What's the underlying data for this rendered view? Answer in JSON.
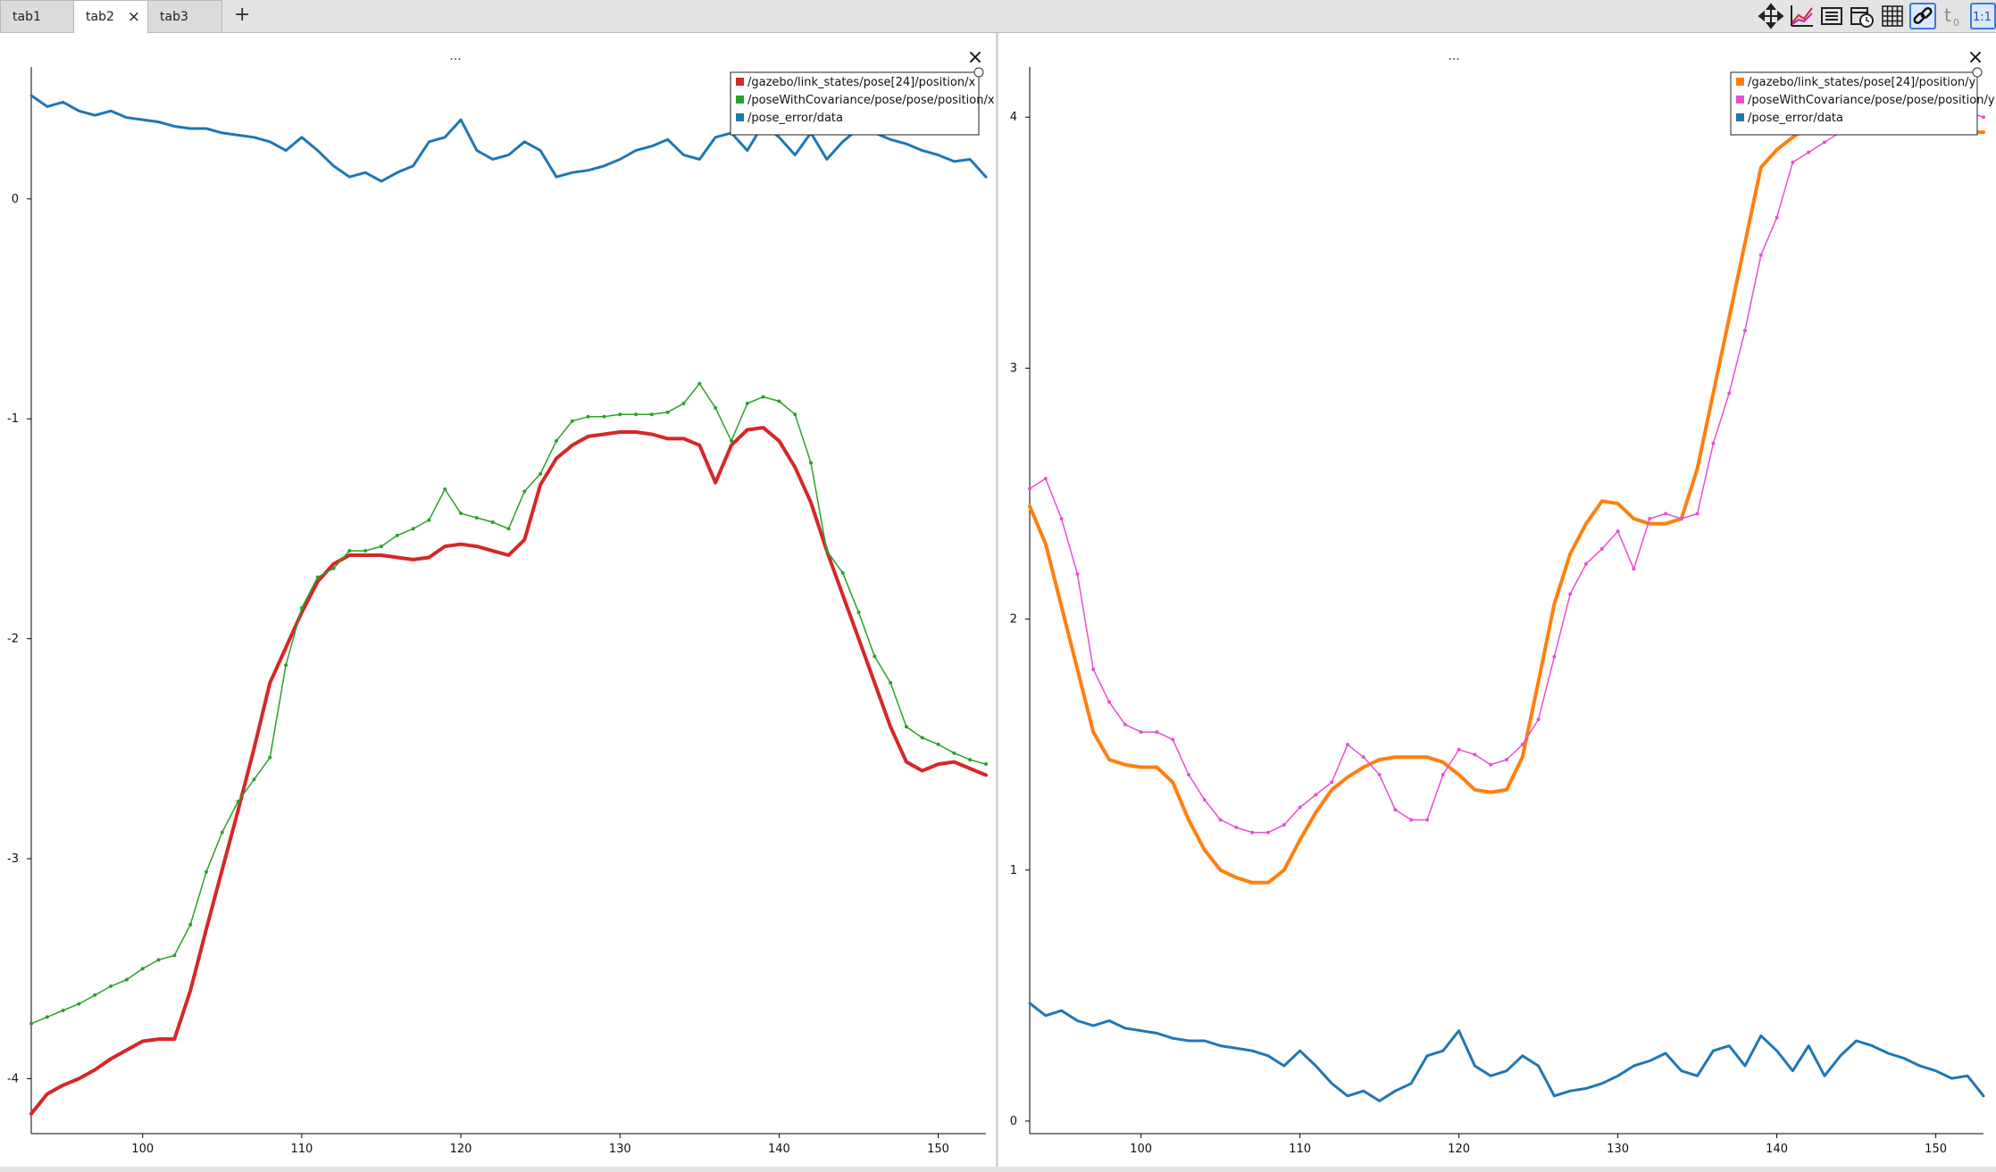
{
  "tabs": [
    {
      "label": "tab1"
    },
    {
      "label": "tab2",
      "close": "×"
    },
    {
      "label": "tab3"
    }
  ],
  "add_tab": "+",
  "toolbar": {
    "icons": [
      "move-icon",
      "plot-settings-icon",
      "legend-icon",
      "time-icon",
      "grid-icon",
      "link-icon",
      "t0-icon",
      "ratio-icon"
    ],
    "t0_label": "t",
    "t0_sub": "0",
    "ratio_label": "1:1"
  },
  "accent": "#3c7bd6",
  "chart_data": [
    {
      "type": "line",
      "title": "...",
      "close": "×",
      "xlim": [
        93,
        153
      ],
      "ylim": [
        -4.25,
        0.6
      ],
      "xticks": [
        100,
        110,
        120,
        130,
        140,
        150
      ],
      "yticks": [
        0,
        -1,
        -2,
        -3,
        -4
      ],
      "legend_position": "top-right",
      "grid": false,
      "series": [
        {
          "name": "/gazebo/link_states/pose[24]/position/x",
          "color": "#d62728",
          "width": 4,
          "markers": false,
          "x": [
            93,
            94,
            95,
            96,
            97,
            98,
            99,
            100,
            101,
            102,
            103,
            104,
            105,
            106,
            107,
            108,
            109,
            110,
            111,
            112,
            113,
            114,
            115,
            116,
            117,
            118,
            119,
            120,
            121,
            122,
            123,
            124,
            125,
            126,
            127,
            128,
            129,
            130,
            131,
            132,
            133,
            134,
            135,
            136,
            137,
            138,
            139,
            140,
            141,
            142,
            143,
            144,
            145,
            146,
            147,
            148,
            149,
            150,
            151,
            152,
            153
          ],
          "y": [
            -4.16,
            -4.07,
            -4.03,
            -4.0,
            -3.96,
            -3.91,
            -3.87,
            -3.83,
            -3.82,
            -3.82,
            -3.6,
            -3.32,
            -3.05,
            -2.78,
            -2.5,
            -2.2,
            -2.04,
            -1.88,
            -1.74,
            -1.66,
            -1.62,
            -1.62,
            -1.62,
            -1.63,
            -1.64,
            -1.63,
            -1.58,
            -1.57,
            -1.58,
            -1.6,
            -1.62,
            -1.55,
            -1.3,
            -1.18,
            -1.12,
            -1.08,
            -1.07,
            -1.06,
            -1.06,
            -1.07,
            -1.09,
            -1.09,
            -1.12,
            -1.29,
            -1.12,
            -1.05,
            -1.04,
            -1.1,
            -1.22,
            -1.38,
            -1.6,
            -1.8,
            -2.0,
            -2.2,
            -2.4,
            -2.56,
            -2.6,
            -2.57,
            -2.56,
            -2.59,
            -2.62
          ]
        },
        {
          "name": "/poseWithCovariance/pose/pose/position/x",
          "color": "#2ca02c",
          "width": 1.5,
          "markers": true,
          "x": [
            93,
            94,
            95,
            96,
            97,
            98,
            99,
            100,
            101,
            102,
            103,
            104,
            105,
            106,
            107,
            108,
            109,
            110,
            111,
            112,
            113,
            114,
            115,
            116,
            117,
            118,
            119,
            120,
            121,
            122,
            123,
            124,
            125,
            126,
            127,
            128,
            129,
            130,
            131,
            132,
            133,
            134,
            135,
            136,
            137,
            138,
            139,
            140,
            141,
            142,
            143,
            144,
            145,
            146,
            147,
            148,
            149,
            150,
            151,
            152,
            153
          ],
          "y": [
            -3.75,
            -3.72,
            -3.69,
            -3.66,
            -3.62,
            -3.58,
            -3.55,
            -3.5,
            -3.46,
            -3.44,
            -3.3,
            -3.06,
            -2.88,
            -2.74,
            -2.64,
            -2.54,
            -2.12,
            -1.86,
            -1.72,
            -1.68,
            -1.6,
            -1.6,
            -1.58,
            -1.53,
            -1.5,
            -1.46,
            -1.32,
            -1.43,
            -1.45,
            -1.47,
            -1.5,
            -1.33,
            -1.25,
            -1.1,
            -1.01,
            -0.99,
            -0.99,
            -0.98,
            -0.98,
            -0.98,
            -0.97,
            -0.93,
            -0.84,
            -0.95,
            -1.1,
            -0.93,
            -0.9,
            -0.92,
            -0.98,
            -1.2,
            -1.6,
            -1.7,
            -1.88,
            -2.08,
            -2.2,
            -2.4,
            -2.45,
            -2.48,
            -2.52,
            -2.55,
            -2.57
          ]
        },
        {
          "name": "/pose_error/data",
          "color": "#1f77b4",
          "width": 3,
          "markers": false,
          "x": [
            93,
            94,
            95,
            96,
            97,
            98,
            99,
            100,
            101,
            102,
            103,
            104,
            105,
            106,
            107,
            108,
            109,
            110,
            111,
            112,
            113,
            114,
            115,
            116,
            117,
            118,
            119,
            120,
            121,
            122,
            123,
            124,
            125,
            126,
            127,
            128,
            129,
            130,
            131,
            132,
            133,
            134,
            135,
            136,
            137,
            138,
            139,
            140,
            141,
            142,
            143,
            144,
            145,
            146,
            147,
            148,
            149,
            150,
            151,
            152,
            153
          ],
          "y": [
            0.47,
            0.42,
            0.44,
            0.4,
            0.38,
            0.4,
            0.37,
            0.36,
            0.35,
            0.33,
            0.32,
            0.32,
            0.3,
            0.29,
            0.28,
            0.26,
            0.22,
            0.28,
            0.22,
            0.15,
            0.1,
            0.12,
            0.08,
            0.12,
            0.15,
            0.26,
            0.28,
            0.36,
            0.22,
            0.18,
            0.2,
            0.26,
            0.22,
            0.1,
            0.12,
            0.13,
            0.15,
            0.18,
            0.22,
            0.24,
            0.27,
            0.2,
            0.18,
            0.28,
            0.3,
            0.22,
            0.34,
            0.28,
            0.2,
            0.3,
            0.18,
            0.26,
            0.32,
            0.3,
            0.27,
            0.25,
            0.22,
            0.2,
            0.17,
            0.18,
            0.1
          ]
        }
      ]
    },
    {
      "type": "line",
      "title": "...",
      "close": "×",
      "xlim": [
        93,
        153
      ],
      "ylim": [
        -0.05,
        4.2
      ],
      "xticks": [
        100,
        110,
        120,
        130,
        140,
        150
      ],
      "yticks": [
        0,
        1,
        2,
        3,
        4
      ],
      "legend_position": "top-right",
      "grid": false,
      "series": [
        {
          "name": "/gazebo/link_states/pose[24]/position/y",
          "color": "#ff7f0e",
          "width": 4,
          "markers": false,
          "x": [
            93,
            94,
            95,
            96,
            97,
            98,
            99,
            100,
            101,
            102,
            103,
            104,
            105,
            106,
            107,
            108,
            109,
            110,
            111,
            112,
            113,
            114,
            115,
            116,
            117,
            118,
            119,
            120,
            121,
            122,
            123,
            124,
            125,
            126,
            127,
            128,
            129,
            130,
            131,
            132,
            133,
            134,
            135,
            136,
            137,
            138,
            139,
            140,
            141,
            142,
            143,
            144,
            145,
            146,
            147,
            148,
            149,
            150,
            151,
            152,
            153
          ],
          "y": [
            2.45,
            2.3,
            2.05,
            1.8,
            1.55,
            1.44,
            1.42,
            1.41,
            1.41,
            1.35,
            1.2,
            1.08,
            1.0,
            0.97,
            0.95,
            0.95,
            1.0,
            1.12,
            1.23,
            1.32,
            1.37,
            1.41,
            1.44,
            1.45,
            1.45,
            1.45,
            1.43,
            1.38,
            1.32,
            1.31,
            1.32,
            1.45,
            1.75,
            2.06,
            2.26,
            2.38,
            2.47,
            2.46,
            2.4,
            2.38,
            2.38,
            2.4,
            2.6,
            2.9,
            3.2,
            3.5,
            3.8,
            3.87,
            3.92,
            3.96,
            4.0,
            4.04,
            4.07,
            4.08,
            4.04,
            3.96,
            3.94,
            3.94,
            3.94,
            3.94,
            3.94
          ]
        },
        {
          "name": "/poseWithCovariance/pose/pose/position/y",
          "color": "#e94fd0",
          "width": 1.5,
          "markers": true,
          "x": [
            93,
            94,
            95,
            96,
            97,
            98,
            99,
            100,
            101,
            102,
            103,
            104,
            105,
            106,
            107,
            108,
            109,
            110,
            111,
            112,
            113,
            114,
            115,
            116,
            117,
            118,
            119,
            120,
            121,
            122,
            123,
            124,
            125,
            126,
            127,
            128,
            129,
            130,
            131,
            132,
            133,
            134,
            135,
            136,
            137,
            138,
            139,
            140,
            141,
            142,
            143,
            144,
            145,
            146,
            147,
            148,
            149,
            150,
            151,
            152,
            153
          ],
          "y": [
            2.52,
            2.56,
            2.4,
            2.18,
            1.8,
            1.67,
            1.58,
            1.55,
            1.55,
            1.52,
            1.38,
            1.28,
            1.2,
            1.17,
            1.15,
            1.15,
            1.18,
            1.25,
            1.3,
            1.35,
            1.5,
            1.45,
            1.38,
            1.24,
            1.2,
            1.2,
            1.38,
            1.48,
            1.46,
            1.42,
            1.44,
            1.5,
            1.6,
            1.85,
            2.1,
            2.22,
            2.28,
            2.35,
            2.2,
            2.4,
            2.42,
            2.4,
            2.42,
            2.7,
            2.9,
            3.15,
            3.45,
            3.6,
            3.82,
            3.86,
            3.9,
            3.94,
            3.98,
            4.02,
            4.02,
            4.07,
            4.05,
            4.02,
            4.04,
            4.02,
            4.0
          ]
        },
        {
          "name": "/pose_error/data",
          "color": "#1f77b4",
          "width": 3,
          "markers": false,
          "x": [
            93,
            94,
            95,
            96,
            97,
            98,
            99,
            100,
            101,
            102,
            103,
            104,
            105,
            106,
            107,
            108,
            109,
            110,
            111,
            112,
            113,
            114,
            115,
            116,
            117,
            118,
            119,
            120,
            121,
            122,
            123,
            124,
            125,
            126,
            127,
            128,
            129,
            130,
            131,
            132,
            133,
            134,
            135,
            136,
            137,
            138,
            139,
            140,
            141,
            142,
            143,
            144,
            145,
            146,
            147,
            148,
            149,
            150,
            151,
            152,
            153
          ],
          "y": [
            0.47,
            0.42,
            0.44,
            0.4,
            0.38,
            0.4,
            0.37,
            0.36,
            0.35,
            0.33,
            0.32,
            0.32,
            0.3,
            0.29,
            0.28,
            0.26,
            0.22,
            0.28,
            0.22,
            0.15,
            0.1,
            0.12,
            0.08,
            0.12,
            0.15,
            0.26,
            0.28,
            0.36,
            0.22,
            0.18,
            0.2,
            0.26,
            0.22,
            0.1,
            0.12,
            0.13,
            0.15,
            0.18,
            0.22,
            0.24,
            0.27,
            0.2,
            0.18,
            0.28,
            0.3,
            0.22,
            0.34,
            0.28,
            0.2,
            0.3,
            0.18,
            0.26,
            0.32,
            0.3,
            0.27,
            0.25,
            0.22,
            0.2,
            0.17,
            0.18,
            0.1
          ]
        }
      ]
    }
  ]
}
